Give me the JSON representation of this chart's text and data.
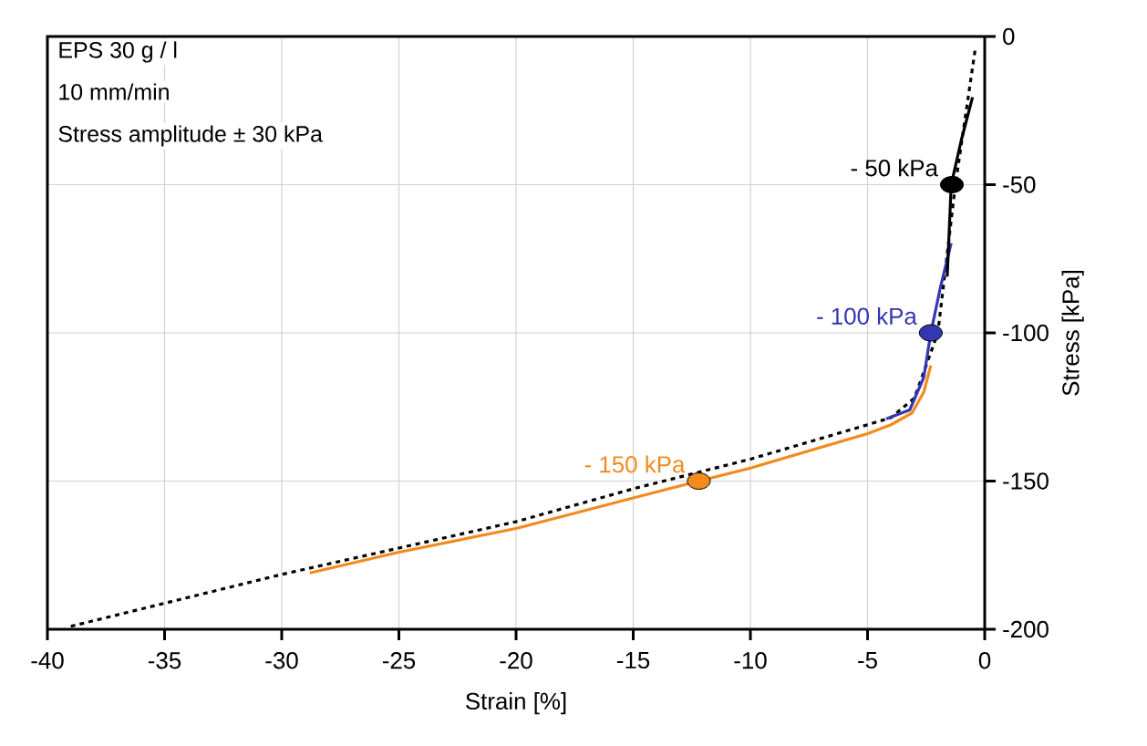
{
  "chart_data": {
    "type": "line",
    "xlabel": "Strain [%]",
    "ylabel": "Stress [kPa]",
    "xlim": [
      -40,
      0
    ],
    "xticks": [
      -40,
      -35,
      -30,
      -25,
      -20,
      -15,
      -10,
      -5,
      0
    ],
    "ylim": [
      -200,
      0
    ],
    "yticks": [
      -200,
      -150,
      -100,
      -50,
      0
    ],
    "grid": true,
    "annotations": [
      "EPS 30 g / l",
      "10 mm/min",
      "Stress amplitude ± 30 kPa",
      {
        "text": "- 50 kPa",
        "x": -1.4,
        "y": -50
      },
      {
        "text": "- 100 kPa",
        "x": -2.3,
        "y": -100
      },
      {
        "text": "- 150 kPa",
        "x": -12.2,
        "y": -150
      }
    ],
    "series": [
      {
        "color": "#000000",
        "line_style": "dotted",
        "marker": "none",
        "x": [
          -39,
          -30,
          -20,
          -15,
          -10,
          -5,
          -4,
          -3,
          -2,
          -1.25,
          -0.4
        ],
        "values": [
          -199,
          -181.5,
          -163.7,
          -152.6,
          -142.6,
          -131,
          -128.6,
          -122,
          -100,
          -50,
          -4
        ]
      },
      {
        "color": "#f28a1e",
        "line_style": "solid",
        "marker": "none",
        "x": [
          -28.8,
          -25,
          -20,
          -15,
          -12.2,
          -10,
          -5,
          -4,
          -3.1,
          -2.6,
          -2.3
        ],
        "values": [
          -181,
          -174,
          -166,
          -155.7,
          -150,
          -145.6,
          -134,
          -131,
          -127,
          -120,
          -111
        ]
      },
      {
        "color": "#3338b0",
        "line_style": "solid",
        "marker": "none",
        "x": [
          -4.2,
          -3.2,
          -2.6,
          -2.3,
          -1.9,
          -1.43
        ],
        "values": [
          -129,
          -126,
          -115,
          -100,
          -85,
          -69.7
        ]
      },
      {
        "color": "#000000",
        "line_style": "solid",
        "marker": "none",
        "x": [
          -1.6,
          -1.43,
          -1.0,
          -0.52
        ],
        "values": [
          -81,
          -50,
          -35,
          -20.5
        ]
      },
      {
        "type": "scatter",
        "color": "#000000",
        "marker": "circle",
        "x": [
          -1.4
        ],
        "values": [
          -50
        ]
      },
      {
        "type": "scatter",
        "color": "#3338b0",
        "marker": "circle",
        "x": [
          -2.3
        ],
        "values": [
          -100
        ]
      },
      {
        "type": "scatter",
        "color": "#f28a1e",
        "marker": "circle",
        "x": [
          -12.2
        ],
        "values": [
          -150
        ]
      }
    ]
  }
}
